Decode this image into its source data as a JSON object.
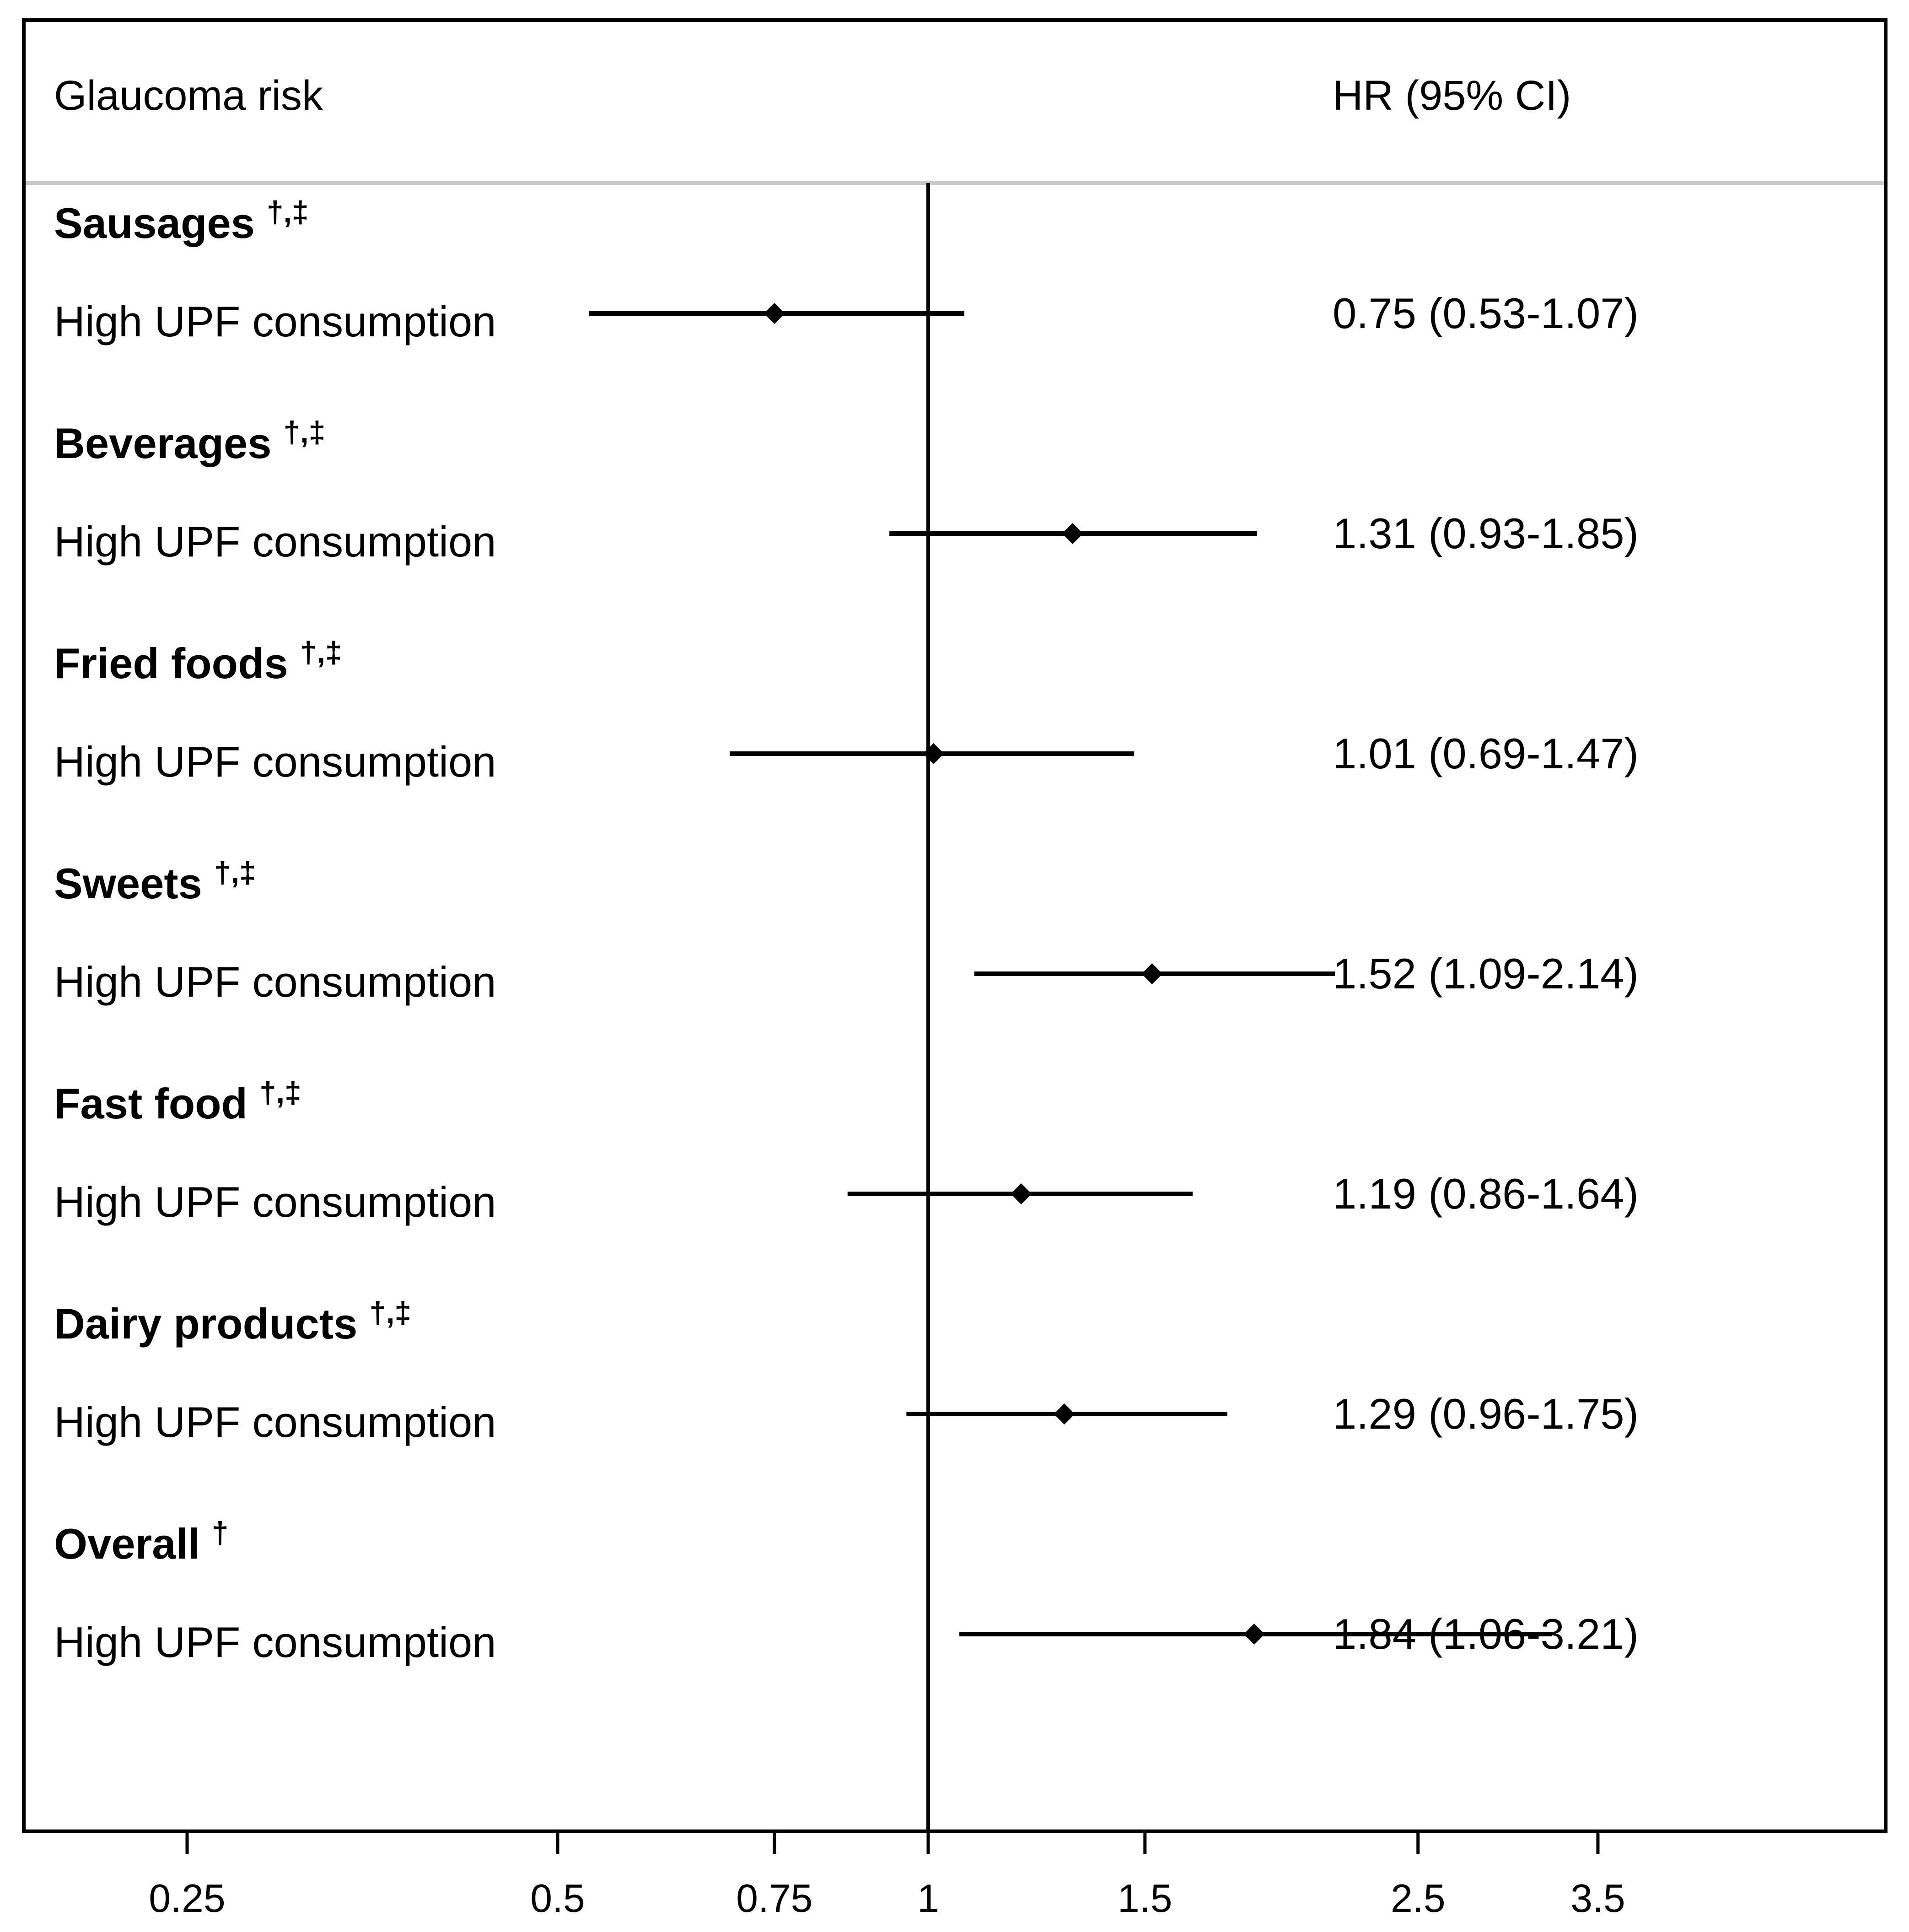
{
  "header": {
    "left_title": "Glaucoma risk",
    "right_title": "HR (95% CI)"
  },
  "chart_data": {
    "type": "forest",
    "title": "Glaucoma risk",
    "value_column_label": "HR (95% CI)",
    "x_scale": "log",
    "xlim": [
      0.25,
      3.5
    ],
    "reference_line": 1,
    "x_ticks": [
      0.25,
      0.5,
      0.75,
      1,
      1.5,
      2.5,
      3.5
    ],
    "x_tick_labels": [
      "0.25",
      "0.5",
      "0.75",
      "1",
      "1.5",
      "2.5",
      "3.5"
    ],
    "rows": [
      {
        "group": "Sausages",
        "marks": "†,‡",
        "label": "High UPF consumption",
        "hr": 0.75,
        "lo": 0.53,
        "hi": 1.07,
        "text": "0.75 (0.53-1.07)"
      },
      {
        "group": "Beverages",
        "marks": "†,‡",
        "label": "High UPF consumption",
        "hr": 1.31,
        "lo": 0.93,
        "hi": 1.85,
        "text": "1.31 (0.93-1.85)"
      },
      {
        "group": "Fried foods",
        "marks": "†,‡",
        "label": "High UPF consumption",
        "hr": 1.01,
        "lo": 0.69,
        "hi": 1.47,
        "text": "1.01 (0.69-1.47)"
      },
      {
        "group": "Sweets",
        "marks": "†,‡",
        "label": "High UPF consumption",
        "hr": 1.52,
        "lo": 1.09,
        "hi": 2.14,
        "text": "1.52 (1.09-2.14)"
      },
      {
        "group": "Fast food",
        "marks": "†,‡",
        "label": "High UPF consumption",
        "hr": 1.19,
        "lo": 0.86,
        "hi": 1.64,
        "text": "1.19 (0.86-1.64)"
      },
      {
        "group": "Dairy products",
        "marks": "†,‡",
        "label": "High UPF consumption",
        "hr": 1.29,
        "lo": 0.96,
        "hi": 1.75,
        "text": "1.29 (0.96-1.75)"
      },
      {
        "group": "Overall",
        "marks": "†",
        "label": "High UPF consumption",
        "hr": 1.84,
        "lo": 1.06,
        "hi": 3.21,
        "text": "1.84 (1.06-3.21)"
      }
    ]
  }
}
